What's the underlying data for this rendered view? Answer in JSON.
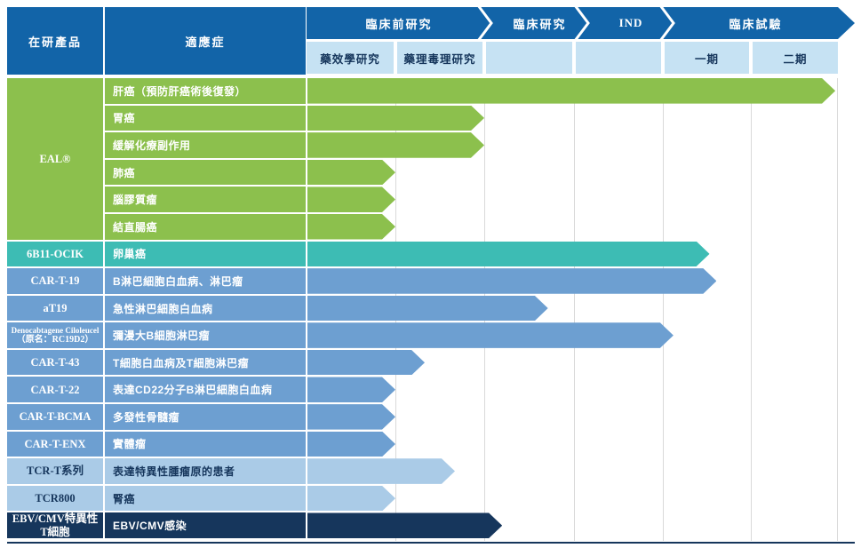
{
  "header": {
    "product": "在研產品",
    "indication": "適應症",
    "banner": [
      "臨床前研究",
      "臨床研究",
      "IND",
      "臨床試驗"
    ],
    "sub": [
      "藥效學研究",
      "藥理毒理研究",
      "",
      "",
      "一期",
      "二期"
    ]
  },
  "colors": {
    "header_blue": "#1264a8",
    "subheader_bg": "#c6e2f3",
    "navy_text": "#16365c",
    "green": "#8cc04d",
    "teal": "#3dbcb4",
    "blue": "#6d9fd1",
    "lightblue": "#aacbe7",
    "navy": "#16365c",
    "gridline": "#d9d9d9"
  },
  "chart_data": {
    "type": "bar",
    "orientation": "horizontal",
    "stage_axis": [
      "臨床前研究-藥效學研究",
      "臨床前研究-藥理毒理研究",
      "臨床研究",
      "IND",
      "臨床試驗一期",
      "臨床試驗二期"
    ],
    "stage_axis_range": [
      0,
      6
    ],
    "grid": true,
    "products": [
      {
        "name": "EAL®",
        "color": "green",
        "indications": [
          {
            "label": "肝癌（預防肝癌術後復發）",
            "progress": 5.97,
            "stage_reached": "臨床試驗二期"
          },
          {
            "label": "胃癌",
            "progress": 2.0,
            "stage_reached": "臨床前研究-藥理毒理研究"
          },
          {
            "label": "緩解化療副作用",
            "progress": 2.0,
            "stage_reached": "臨床前研究-藥理毒理研究"
          },
          {
            "label": "肺癌",
            "progress": 1.0,
            "stage_reached": "臨床前研究-藥效學研究"
          },
          {
            "label": "腦膠質瘤",
            "progress": 1.0,
            "stage_reached": "臨床前研究-藥效學研究"
          },
          {
            "label": "結直腸癌",
            "progress": 1.0,
            "stage_reached": "臨床前研究-藥效學研究"
          }
        ]
      },
      {
        "name": "6B11-OCIK",
        "color": "teal",
        "indications": [
          {
            "label": "卵巢癌",
            "progress": 4.53,
            "stage_reached": "臨床試驗一期"
          }
        ]
      },
      {
        "name": "CAR-T-19",
        "color": "blue",
        "indications": [
          {
            "label": "B淋巴細胞白血病、淋巴瘤",
            "progress": 4.61,
            "stage_reached": "臨床試驗一期"
          }
        ]
      },
      {
        "name": "aT19",
        "color": "blue",
        "indications": [
          {
            "label": "急性淋巴細胞白血病",
            "progress": 2.71,
            "stage_reached": "臨床研究"
          }
        ]
      },
      {
        "name": "Denocabtagene Ciloleucel",
        "name_sub": "（原名：RC19D2）",
        "color": "blue",
        "indications": [
          {
            "label": "彌漫大B細胞淋巴瘤",
            "progress": 4.12,
            "stage_reached": "IND"
          }
        ]
      },
      {
        "name": "CAR-T-43",
        "color": "blue",
        "indications": [
          {
            "label": "T細胞白血病及T細胞淋巴瘤",
            "progress": 1.33,
            "stage_reached": "臨床前研究-藥理毒理研究"
          }
        ]
      },
      {
        "name": "CAR-T-22",
        "color": "blue",
        "indications": [
          {
            "label": "表達CD22分子B淋巴細胞白血病",
            "progress": 1.0,
            "stage_reached": "臨床前研究-藥效學研究"
          }
        ]
      },
      {
        "name": "CAR-T-BCMA",
        "color": "blue",
        "indications": [
          {
            "label": "多發性骨髓瘤",
            "progress": 1.0,
            "stage_reached": "臨床前研究-藥效學研究"
          }
        ]
      },
      {
        "name": "CAR-T-ENX",
        "color": "blue",
        "indications": [
          {
            "label": "實體瘤",
            "progress": 1.0,
            "stage_reached": "臨床前研究-藥效學研究"
          }
        ]
      },
      {
        "name": "TCR-T系列",
        "color": "lightblue",
        "indications": [
          {
            "label": "表達特異性腫瘤原的患者",
            "progress": 1.67,
            "stage_reached": "臨床前研究-藥理毒理研究"
          }
        ]
      },
      {
        "name": "TCR800",
        "color": "lightblue",
        "indications": [
          {
            "label": "腎癌",
            "progress": 1.0,
            "stage_reached": "臨床前研究-藥效學研究"
          }
        ]
      },
      {
        "name": "EBV/CMV特異性",
        "name2": "T細胞",
        "color": "navy",
        "indications": [
          {
            "label": "EBV/CMV感染",
            "progress": 2.2,
            "stage_reached": "臨床研究"
          }
        ]
      }
    ]
  }
}
